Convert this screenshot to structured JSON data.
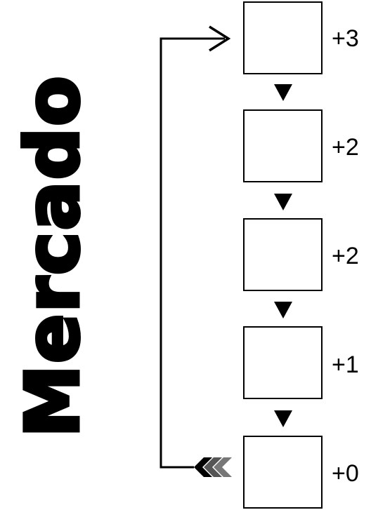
{
  "title": "Mercado",
  "slots": [
    {
      "label": "+3"
    },
    {
      "label": "+2"
    },
    {
      "label": "+2"
    },
    {
      "label": "+1"
    },
    {
      "label": "+0"
    }
  ]
}
